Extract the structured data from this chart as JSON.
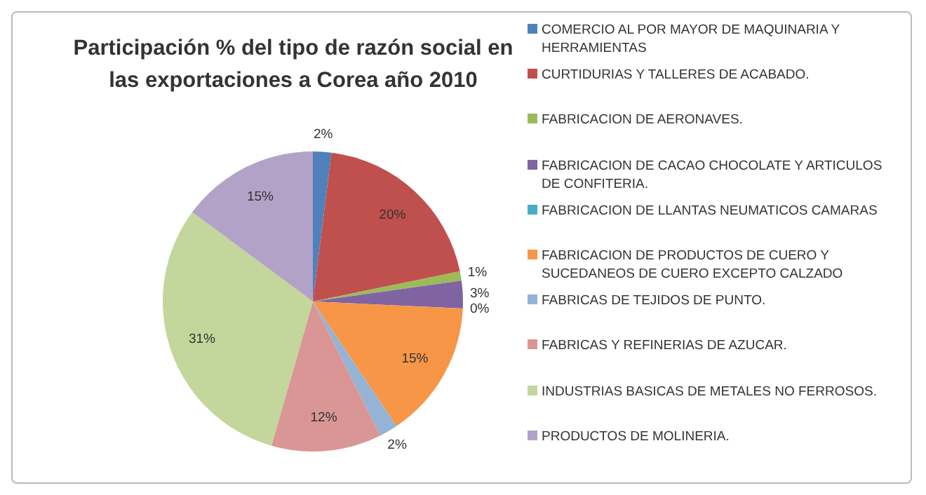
{
  "chart_data": {
    "type": "pie",
    "title": "Participación % del tipo de razón social en las exportaciones a Corea año 2010",
    "categories": [
      "COMERCIO AL POR MAYOR DE MAQUINARIA Y HERRAMIENTAS",
      "CURTIDURIAS Y TALLERES DE ACABADO.",
      "FABRICACION DE AERONAVES.",
      "FABRICACION DE CACAO CHOCOLATE Y ARTICULOS DE CONFITERIA.",
      "FABRICACION DE LLANTAS NEUMATICOS CAMARAS",
      "FABRICACION DE PRODUCTOS DE CUERO Y SUCEDANEOS DE CUERO EXCEPTO CALZADO",
      "FABRICAS DE TEJIDOS DE PUNTO.",
      "FABRICAS Y REFINERIAS DE AZUCAR.",
      "INDUSTRIAS BASICAS DE METALES NO FERROSOS.",
      "PRODUCTOS DE MOLINERIA."
    ],
    "values": [
      2,
      20,
      1,
      3,
      0,
      15,
      2,
      12,
      31,
      15
    ],
    "value_labels": [
      "2%",
      "20%",
      "1%",
      "3%",
      "0%",
      "15%",
      "2%",
      "12%",
      "31%",
      "15%"
    ],
    "colors": [
      "#4f81bd",
      "#c0504d",
      "#9bbb59",
      "#8064a2",
      "#4bacc6",
      "#f79646",
      "#95b3d7",
      "#d99694",
      "#c3d69b",
      "#b3a2c7"
    ],
    "legend": "right"
  }
}
